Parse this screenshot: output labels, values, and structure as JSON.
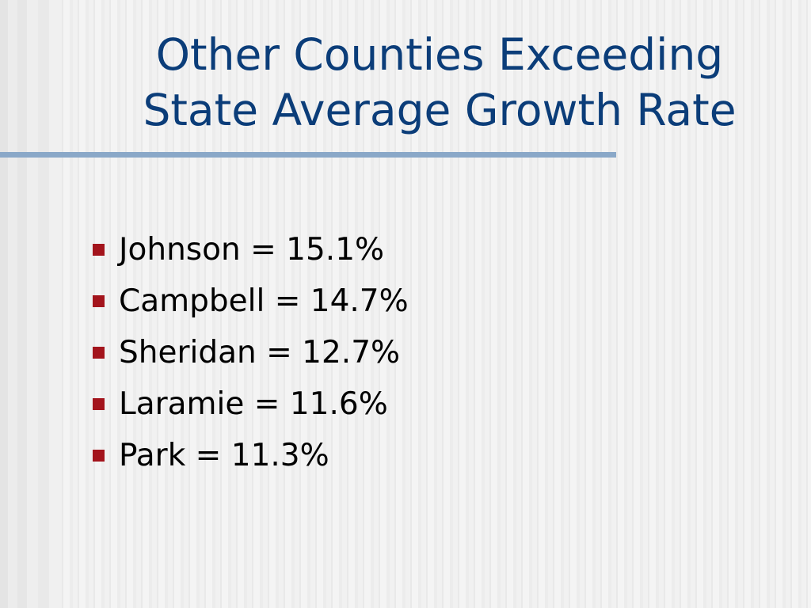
{
  "slide": {
    "title": "Other Counties Exceeding\nState Average Growth Rate",
    "bullets": [
      "Johnson = 15.1%",
      "Campbell = 14.7%",
      "Sheridan = 12.7%",
      "Laramie = 11.6%",
      "Park = 11.3%"
    ]
  },
  "colors": {
    "title": "#0b3d79",
    "rule": "#8aa8c8",
    "bullet": "#a3141c"
  }
}
